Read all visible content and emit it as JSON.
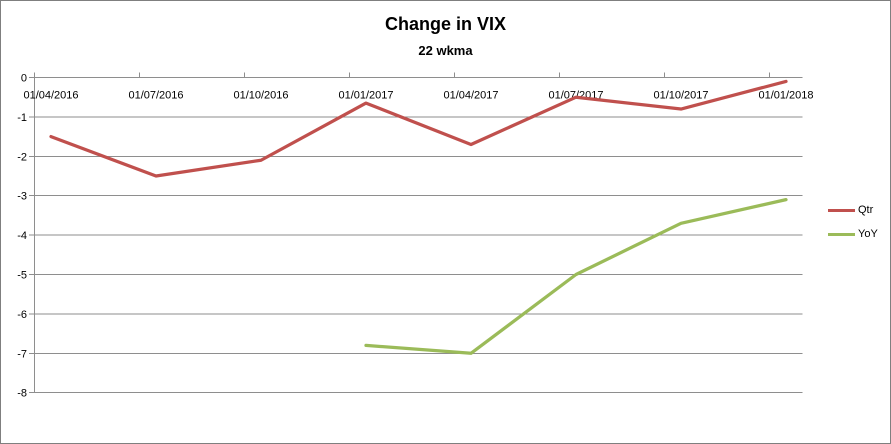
{
  "chart_data": {
    "type": "line",
    "title": "Change in VIX",
    "subtitle": "22 wkma",
    "categories": [
      "01/04/2016",
      "01/07/2016",
      "01/10/2016",
      "01/01/2017",
      "01/04/2017",
      "01/07/2017",
      "01/10/2017",
      "01/01/2018"
    ],
    "series": [
      {
        "name": "Qtr",
        "color": "#C0504D",
        "values": [
          -1.5,
          -2.5,
          -2.1,
          -0.65,
          -1.7,
          -0.5,
          -0.8,
          -0.1
        ]
      },
      {
        "name": "YoY",
        "color": "#9BBB59",
        "values": [
          null,
          null,
          null,
          -6.8,
          -7.0,
          -5.0,
          -3.7,
          -3.1
        ]
      }
    ],
    "ylim": [
      -8,
      0
    ],
    "yticks": [
      "0",
      "-1",
      "-2",
      "-3",
      "-4",
      "-5",
      "-6",
      "-7",
      "-8"
    ],
    "grid": true,
    "legend_position": "right",
    "colors": {
      "axis": "#8E8E8E",
      "gridline": "#8E8E8E",
      "text": "#000000",
      "background": "#FFFFFF",
      "frame_border": "#7F7F7F"
    }
  }
}
